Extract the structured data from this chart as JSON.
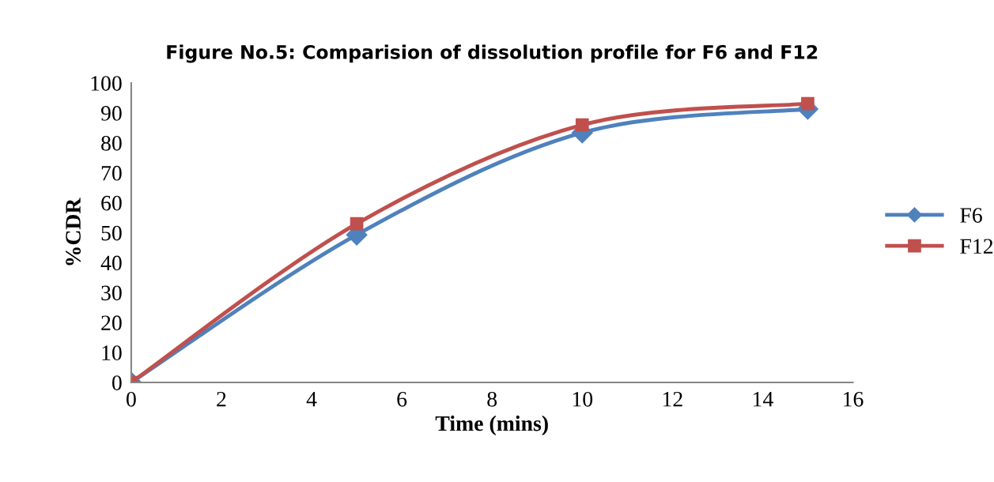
{
  "chart_data": {
    "type": "line",
    "title": "Figure No.5: Comparision of dissolution profile for F6 and F12",
    "xlabel": "Time (mins)",
    "ylabel": "%CDR",
    "x": [
      0,
      5,
      10,
      15
    ],
    "series": [
      {
        "name": "F6",
        "color": "#4f81bd",
        "marker": "diamond",
        "values": [
          0,
          49.3,
          83.4,
          91.3
        ]
      },
      {
        "name": "F12",
        "color": "#c0504d",
        "marker": "square",
        "values": [
          0,
          53,
          86,
          93.1
        ]
      }
    ],
    "xlim": [
      0,
      16
    ],
    "xticks": [
      0,
      2,
      4,
      6,
      8,
      10,
      12,
      14,
      16
    ],
    "ylim": [
      0,
      100
    ],
    "yticks": [
      0,
      10,
      20,
      30,
      40,
      50,
      60,
      70,
      80,
      90,
      100
    ],
    "grid": false,
    "legend": "right",
    "line_style": "solid"
  }
}
